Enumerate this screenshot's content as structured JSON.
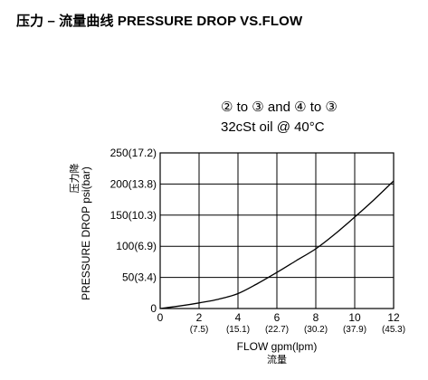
{
  "header": {
    "title": "压力 – 流量曲线 PRESSURE DROP VS.FLOW"
  },
  "chart_data": {
    "type": "line",
    "annotations": [
      "② to ③ and  ④ to ③",
      "32cSt  oil @ 40°C"
    ],
    "xlabel": "FLOW gpm(lpm)",
    "xlabel_cn": "流量",
    "ylabel": "PRESSURE DROP psi(bar)",
    "ylabel_cn": "压力降",
    "xlim": [
      0,
      12
    ],
    "ylim": [
      0,
      250
    ],
    "grid": true,
    "x_ticks": [
      {
        "value": 0,
        "label": "0",
        "sublabel": ""
      },
      {
        "value": 2,
        "label": "2",
        "sublabel": "(7.5)"
      },
      {
        "value": 4,
        "label": "4",
        "sublabel": "(15.1)"
      },
      {
        "value": 6,
        "label": "6",
        "sublabel": "(22.7)"
      },
      {
        "value": 8,
        "label": "8",
        "sublabel": "(30.2)"
      },
      {
        "value": 10,
        "label": "10",
        "sublabel": "(37.9)"
      },
      {
        "value": 12,
        "label": "12",
        "sublabel": "(45.3)"
      }
    ],
    "y_ticks": [
      {
        "value": 0,
        "label": "0"
      },
      {
        "value": 50,
        "label": "50(3.4)"
      },
      {
        "value": 100,
        "label": "100(6.9)"
      },
      {
        "value": 150,
        "label": "150(10.3)"
      },
      {
        "value": 200,
        "label": "200(13.8)"
      },
      {
        "value": 250,
        "label": "250(17.2)"
      }
    ],
    "series": [
      {
        "x": [
          0,
          1,
          2,
          3,
          4,
          5,
          6,
          7,
          8,
          9,
          10,
          11,
          12
        ],
        "y": [
          0,
          4,
          9,
          15,
          24,
          40,
          58,
          77,
          96,
          120,
          147,
          175,
          205
        ]
      }
    ]
  }
}
